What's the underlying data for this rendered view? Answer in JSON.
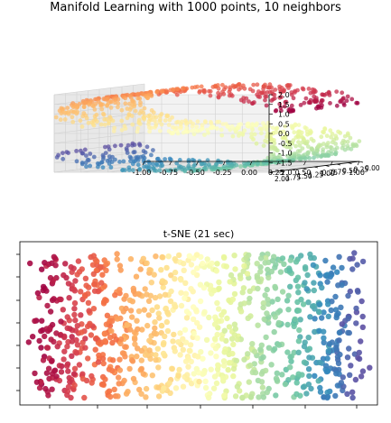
{
  "figure": {
    "title": "Manifold Learning with 1000 points, 10 neighbors"
  },
  "chart_data": [
    {
      "type": "scatter",
      "projection": "3d",
      "title": "",
      "n_points": 1000,
      "colormap": "Spectral",
      "data_description": "S-curve: x = sin(t), y in [0, 2], z = sign(t)*(cos(t)-1), t in [-1.5π, 1.5π]",
      "x_ticks": [
        "-1.00",
        "-0.75",
        "-0.50",
        "-0.25",
        "0.00",
        "0.25",
        "0.50",
        "0.75",
        "1.00"
      ],
      "y_ticks": [
        "0.00",
        "0.25",
        "0.50",
        "0.75",
        "1.00",
        "1.25",
        "1.50",
        "1.75",
        "2.00"
      ],
      "z_ticks": [
        "2.0",
        "1.5",
        "1.0",
        "0.5",
        "0.0",
        "-0.5",
        "-1.0",
        "-1.5",
        "-2.0"
      ],
      "xlim": [
        -1.0,
        1.0
      ],
      "ylim": [
        0.0,
        2.0
      ],
      "zlim": [
        -2.0,
        2.0
      ],
      "grid": true
    },
    {
      "type": "scatter",
      "title": "t-SNE (21 sec)",
      "n_points": 1000,
      "colormap": "Spectral",
      "tick_labels_shown": false,
      "data_description": "2D embedding of the S-curve unrolled horizontally, red on the left to blue on the right"
    }
  ]
}
